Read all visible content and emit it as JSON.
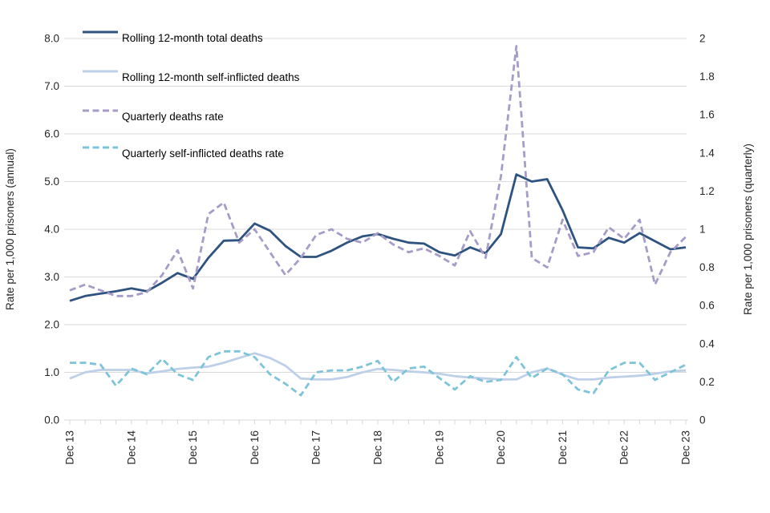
{
  "chart_data": {
    "type": "line",
    "title": "",
    "categories": [
      "Dec 13",
      "Mar 14",
      "Jun 14",
      "Sep 14",
      "Dec 14",
      "Mar 15",
      "Jun 15",
      "Sep 15",
      "Dec 15",
      "Mar 16",
      "Jun 16",
      "Sep 16",
      "Dec 16",
      "Mar 17",
      "Jun 17",
      "Sep 17",
      "Dec 17",
      "Mar 18",
      "Jun 18",
      "Sep 18",
      "Dec 18",
      "Mar 19",
      "Jun 19",
      "Sep 19",
      "Dec 19",
      "Mar 20",
      "Jun 20",
      "Sep 20",
      "Dec 20",
      "Mar 21",
      "Jun 21",
      "Sep 21",
      "Dec 21",
      "Mar 22",
      "Jun 22",
      "Sep 22",
      "Dec 22",
      "Mar 23",
      "Jun 23",
      "Sep 23",
      "Dec 23"
    ],
    "x_visible_year_labels": [
      "Dec 13",
      "Dec 14",
      "Dec 15",
      "Dec 16",
      "Dec 17",
      "Dec 18",
      "Dec 19",
      "Dec 20",
      "Dec 21",
      "Dec 22",
      "Dec 23"
    ],
    "left_axis": {
      "label": "Rate per 1,000 prisoners (annual)",
      "min": 0,
      "max": 8,
      "step": 1,
      "tick_labels": [
        "0.0",
        "1.0",
        "2.0",
        "3.0",
        "4.0",
        "5.0",
        "6.0",
        "7.0",
        "8.0"
      ]
    },
    "right_axis": {
      "label": "Rate per 1,000 prisoners (quarterly)",
      "min": 0,
      "max": 2,
      "step": 0.2,
      "tick_labels": [
        "0",
        "0.2",
        "0.4",
        "0.6",
        "0.8",
        "1",
        "1.2",
        "1.4",
        "1.6",
        "1.8",
        "2"
      ]
    },
    "grid": "horizontal",
    "legend_position": "top-left",
    "grid_color": "#D9D9D9",
    "series": [
      {
        "name": "Rolling 12-month total deaths",
        "axis": "left",
        "line": "solid",
        "color": "#2F5380",
        "values": [
          2.5,
          2.6,
          2.65,
          2.7,
          2.76,
          2.7,
          2.88,
          3.08,
          2.96,
          3.4,
          3.76,
          3.77,
          4.12,
          3.97,
          3.65,
          3.42,
          3.42,
          3.55,
          3.72,
          3.85,
          3.9,
          3.8,
          3.72,
          3.7,
          3.52,
          3.45,
          3.62,
          3.5,
          3.9,
          5.15,
          5.0,
          5.05,
          4.4,
          3.62,
          3.6,
          3.82,
          3.72,
          3.92,
          3.75,
          3.58,
          3.62
        ]
      },
      {
        "name": "Rolling 12-month self-inflicted deaths",
        "axis": "left",
        "line": "solid",
        "color": "#BDD0E8",
        "values": [
          0.87,
          1.0,
          1.05,
          1.05,
          1.05,
          0.98,
          1.02,
          1.07,
          1.1,
          1.12,
          1.2,
          1.3,
          1.4,
          1.3,
          1.14,
          0.87,
          0.85,
          0.85,
          0.9,
          1.0,
          1.07,
          1.05,
          1.02,
          1.0,
          0.97,
          0.92,
          0.89,
          0.87,
          0.85,
          0.85,
          1.0,
          1.08,
          0.95,
          0.85,
          0.85,
          0.89,
          0.91,
          0.93,
          0.97,
          1.02,
          1.04
        ]
      },
      {
        "name": "Quarterly deaths rate",
        "axis": "right",
        "line": "dashed",
        "color": "#A79CC8",
        "values": [
          0.68,
          0.71,
          0.68,
          0.65,
          0.65,
          0.67,
          0.76,
          0.89,
          0.69,
          1.08,
          1.14,
          0.93,
          1.0,
          0.88,
          0.76,
          0.85,
          0.97,
          1.0,
          0.95,
          0.93,
          0.98,
          0.92,
          0.88,
          0.9,
          0.86,
          0.81,
          0.99,
          0.85,
          1.28,
          1.96,
          0.85,
          0.8,
          1.05,
          0.86,
          0.88,
          1.01,
          0.95,
          1.05,
          0.71,
          0.88,
          0.96
        ]
      },
      {
        "name": "Quarterly self-inflicted deaths rate",
        "axis": "right",
        "line": "dashed",
        "color": "#7EC4D8",
        "values": [
          0.3,
          0.3,
          0.29,
          0.18,
          0.27,
          0.24,
          0.32,
          0.24,
          0.21,
          0.33,
          0.36,
          0.36,
          0.33,
          0.24,
          0.19,
          0.13,
          0.25,
          0.26,
          0.26,
          0.28,
          0.31,
          0.2,
          0.27,
          0.28,
          0.22,
          0.16,
          0.23,
          0.2,
          0.21,
          0.33,
          0.22,
          0.27,
          0.24,
          0.16,
          0.14,
          0.26,
          0.3,
          0.3,
          0.21,
          0.25,
          0.29
        ]
      }
    ]
  }
}
